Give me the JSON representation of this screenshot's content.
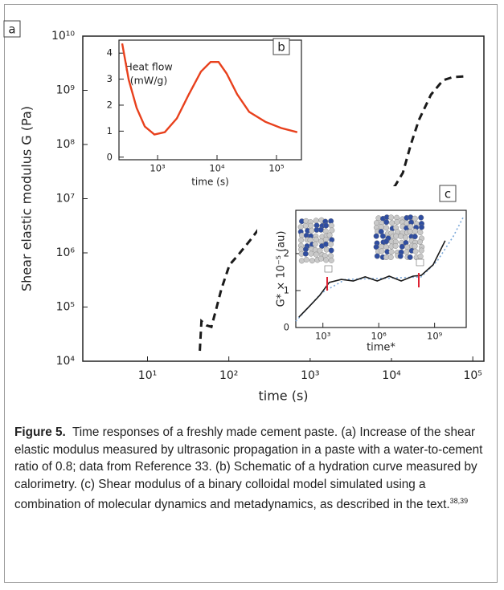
{
  "chart_data": [
    {
      "type": "line",
      "panel_label": "a",
      "xlabel": "time (s)",
      "ylabel": "Shear elastic modulus G (Pa)",
      "xscale": "log",
      "yscale": "log",
      "xlim": [
        1.6,
        137000
      ],
      "ylim": [
        10000,
        10000000000
      ],
      "xticks": [
        {
          "value": 10,
          "label": "10¹"
        },
        {
          "value": 100,
          "label": "10²"
        },
        {
          "value": 1000,
          "label": "10³"
        },
        {
          "value": 10000,
          "label": "10⁴"
        },
        {
          "value": 100000,
          "label": "10⁵"
        }
      ],
      "yticks": [
        {
          "value": 10000,
          "label": "10⁴"
        },
        {
          "value": 100000,
          "label": "10⁵"
        },
        {
          "value": 1000000,
          "label": "10⁶"
        },
        {
          "value": 10000000,
          "label": "10⁷"
        },
        {
          "value": 100000000,
          "label": "10⁸"
        },
        {
          "value": 1000000000,
          "label": "10⁹"
        },
        {
          "value": 10000000000,
          "label": "10¹⁰"
        }
      ],
      "series": [
        {
          "color": "#1a1a1a",
          "line_style": "dashed",
          "x": [
            44,
            46,
            53,
            61,
            70,
            81,
            102,
            129,
            181,
            255,
            358,
            505,
            710,
            1120,
            2220,
            4400,
            6950,
            11000,
            13800,
            17300,
            21700,
            30600,
            43000,
            56500,
            85000
          ],
          "values": [
            15600,
            55000,
            46000,
            43000,
            92000,
            215000,
            600000,
            900000,
            1670000,
            3300000,
            5700000,
            8300000,
            11700000,
            13400000,
            14800000,
            14300000,
            14300000,
            17000000,
            30000000,
            100000000,
            280000000,
            830000000,
            1530000000,
            1750000000,
            1820000000
          ]
        }
      ]
    },
    {
      "type": "line",
      "panel_label": "b",
      "xlabel": "time (s)",
      "annotation": [
        "Heat flow",
        "(mW/g)"
      ],
      "xscale": "log",
      "yscale": "linear",
      "xlim": [
        224,
        263000
      ],
      "ylim": [
        -0.1,
        4.5
      ],
      "xticks": [
        {
          "value": 1000,
          "label": "10³"
        },
        {
          "value": 10000,
          "label": "10⁴"
        },
        {
          "value": 100000,
          "label": "10⁵"
        }
      ],
      "yticks": [
        0,
        1,
        2,
        3,
        4
      ],
      "series": [
        {
          "color": "#e8401c",
          "line_style": "solid",
          "x": [
            254,
            327,
            445,
            608,
            883,
            1320,
            2110,
            3360,
            5370,
            7800,
            10600,
            14500,
            21800,
            34700,
            64700,
            120000,
            224000
          ],
          "values": [
            4.37,
            2.98,
            1.89,
            1.18,
            0.87,
            0.96,
            1.49,
            2.42,
            3.29,
            3.66,
            3.66,
            3.22,
            2.42,
            1.74,
            1.36,
            1.12,
            0.96
          ]
        }
      ]
    },
    {
      "type": "line",
      "panel_label": "c",
      "xlabel": "time*",
      "ylabel": "G* × 10⁻⁵ (au)",
      "xscale": "log",
      "yscale": "linear",
      "xlim": [
        35,
        50000000000
      ],
      "ylim": [
        0,
        3.17
      ],
      "xticks": [
        {
          "value": 1000,
          "label": "10³"
        },
        {
          "value": 1000000,
          "label": "10⁶"
        },
        {
          "value": 1000000000,
          "label": "10⁹"
        }
      ],
      "yticks": [
        0,
        1,
        2
      ],
      "series": [
        {
          "color": "#7aa7d8",
          "line_style": "dotted",
          "x": [
            35,
            820,
            16000,
            2200000,
            190000000,
            1400000000,
            10000000000,
            36000000000
          ],
          "values": [
            0.17,
            0.93,
            1.3,
            1.33,
            1.37,
            1.8,
            2.46,
            3.0
          ]
        },
        {
          "color": "#1a1a1a",
          "line_style": "solid",
          "x": [
            51,
            186,
            676,
            2200,
            9700,
            43000,
            186000,
            830000,
            3600000,
            16000000,
            70000000,
            190000000,
            840000000,
            3700000000
          ],
          "values": [
            0.28,
            0.57,
            0.87,
            1.22,
            1.3,
            1.26,
            1.37,
            1.26,
            1.39,
            1.26,
            1.39,
            1.41,
            1.7,
            2.35
          ]
        }
      ]
    }
  ],
  "caption": {
    "label": "Figure 5.",
    "text": "Time responses of a freshly made cement paste. (a) Increase of the shear elastic modulus measured by ultrasonic propagation in a paste with a water-to-cement ratio of 0.8; data from Reference 33. (b) Schematic of a hydration curve measured by calorimetry. (c) Shear modulus of a binary colloidal model simulated using a combination of molecular dynamics and metadynamics, as described in the text.",
    "refs": "38,39"
  }
}
